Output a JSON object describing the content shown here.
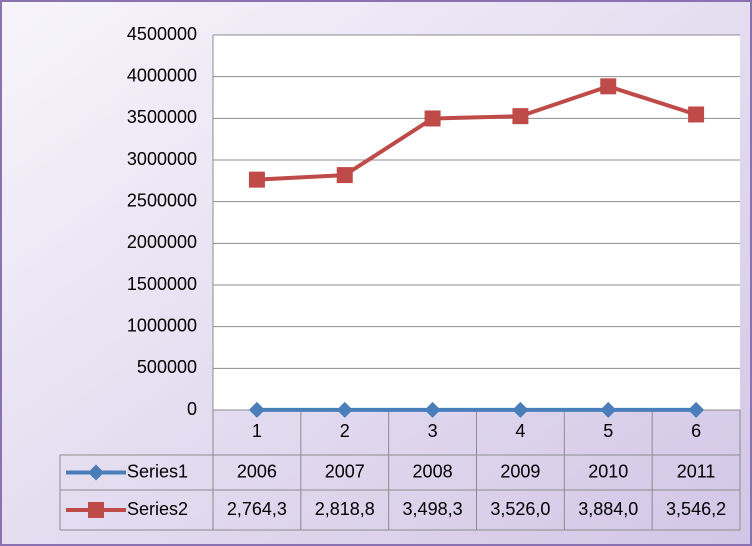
{
  "chart_data": {
    "type": "line",
    "categories": [
      "1",
      "2",
      "3",
      "4",
      "5",
      "6"
    ],
    "series": [
      {
        "name": "Series1",
        "color": "#4a7ebb",
        "marker": "diamond",
        "values": [
          2006,
          2007,
          2008,
          2009,
          2010,
          2011
        ]
      },
      {
        "name": "Series2",
        "color": "#be4b48",
        "marker": "square",
        "values": [
          2764300,
          2818800,
          3498300,
          3526000,
          3884000,
          3546200
        ],
        "value_labels": [
          "2,764,3",
          "2,818,8",
          "3,498,3",
          "3,526,0",
          "3,884,0",
          "3,546,2"
        ]
      }
    ],
    "ylim": [
      0,
      4500000
    ],
    "yticks": [
      0,
      500000,
      1000000,
      1500000,
      2000000,
      2500000,
      3000000,
      3500000,
      4000000,
      4500000
    ],
    "grid": true,
    "data_table": true
  }
}
